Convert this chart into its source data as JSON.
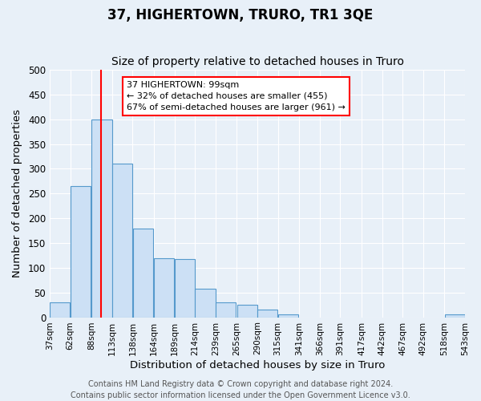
{
  "title": "37, HIGHERTOWN, TRURO, TR1 3QE",
  "subtitle": "Size of property relative to detached houses in Truro",
  "xlabel": "Distribution of detached houses by size in Truro",
  "ylabel": "Number of detached properties",
  "bar_left_edges": [
    37,
    62,
    88,
    113,
    138,
    164,
    189,
    214,
    239,
    265,
    290,
    315,
    341,
    366,
    391,
    417,
    442,
    467,
    492,
    518
  ],
  "bar_heights": [
    30,
    265,
    400,
    310,
    180,
    120,
    117,
    58,
    30,
    25,
    15,
    5,
    0,
    0,
    0,
    0,
    0,
    0,
    0,
    5
  ],
  "bin_width": 25,
  "bar_color": "#cce0f5",
  "bar_edge_color": "#5599cc",
  "red_line_x": 99,
  "ylim": [
    0,
    500
  ],
  "tick_labels": [
    "37sqm",
    "62sqm",
    "88sqm",
    "113sqm",
    "138sqm",
    "164sqm",
    "189sqm",
    "214sqm",
    "239sqm",
    "265sqm",
    "290sqm",
    "315sqm",
    "341sqm",
    "366sqm",
    "391sqm",
    "417sqm",
    "442sqm",
    "467sqm",
    "492sqm",
    "518sqm",
    "543sqm"
  ],
  "tick_positions": [
    37,
    62,
    88,
    113,
    138,
    164,
    189,
    214,
    239,
    265,
    290,
    315,
    341,
    366,
    391,
    417,
    442,
    467,
    492,
    518,
    543
  ],
  "annotation_line1": "37 HIGHERTOWN: 99sqm",
  "annotation_line2": "← 32% of detached houses are smaller (455)",
  "annotation_line3": "67% of semi-detached houses are larger (961) →",
  "footer_line1": "Contains HM Land Registry data © Crown copyright and database right 2024.",
  "footer_line2": "Contains public sector information licensed under the Open Government Licence v3.0.",
  "background_color": "#e8f0f8",
  "plot_bg_color": "#e8f0f8",
  "grid_color": "white",
  "title_fontsize": 12,
  "subtitle_fontsize": 10,
  "label_fontsize": 9.5,
  "tick_fontsize": 7.5,
  "footer_fontsize": 7
}
